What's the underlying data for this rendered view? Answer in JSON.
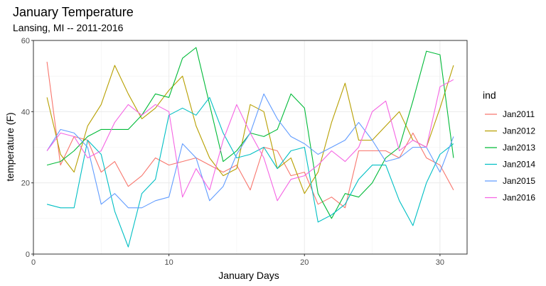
{
  "chart_data": {
    "type": "line",
    "title": "January Temperature",
    "subtitle": "Lansing, MI -- 2011-2016",
    "xlabel": "January Days",
    "ylabel": "temperature (F)",
    "xlim": [
      0,
      32
    ],
    "ylim": [
      0,
      60
    ],
    "xticks": [
      0,
      10,
      20,
      30
    ],
    "yticks": [
      0,
      20,
      40,
      60
    ],
    "grid": true,
    "legend": {
      "title": "ind",
      "position": "right"
    },
    "x": [
      1,
      2,
      3,
      4,
      5,
      6,
      7,
      8,
      9,
      10,
      11,
      12,
      13,
      14,
      15,
      16,
      17,
      18,
      19,
      20,
      21,
      22,
      23,
      24,
      25,
      26,
      27,
      28,
      29,
      30,
      31
    ],
    "series": [
      {
        "name": "Jan2011",
        "color": "#F8766D",
        "values": [
          54,
          25,
          33,
          32,
          23,
          26,
          19,
          22,
          27,
          25,
          26,
          27,
          25,
          23,
          25,
          18,
          30,
          29,
          22,
          23,
          14,
          16,
          13,
          29,
          29,
          29,
          27,
          34,
          27,
          25,
          18
        ]
      },
      {
        "name": "Jan2012",
        "color": "#B79F00",
        "values": [
          44,
          28,
          23,
          36,
          42,
          53,
          45,
          38,
          41,
          46,
          50,
          36,
          27,
          22,
          24,
          42,
          40,
          24,
          27,
          17,
          23,
          37,
          48,
          32,
          32,
          36,
          40,
          32,
          30,
          41,
          53
        ]
      },
      {
        "name": "Jan2013",
        "color": "#00BA38",
        "values": [
          25,
          26,
          29,
          33,
          35,
          35,
          35,
          39,
          45,
          44,
          55,
          58,
          42,
          26,
          29,
          34,
          33,
          35,
          45,
          41,
          17,
          10,
          17,
          16,
          20,
          27,
          30,
          43,
          57,
          56,
          27
        ]
      },
      {
        "name": "Jan2014",
        "color": "#00BFC4",
        "values": [
          14,
          13,
          13,
          32,
          28,
          12,
          2,
          17,
          21,
          39,
          41,
          39,
          44,
          34,
          27,
          28,
          30,
          24,
          29,
          30,
          9,
          11,
          14,
          21,
          25,
          25,
          15,
          8,
          20,
          28,
          31
        ]
      },
      {
        "name": "Jan2015",
        "color": "#619CFF",
        "values": [
          29,
          35,
          34,
          30,
          14,
          17,
          13,
          13,
          15,
          16,
          31,
          27,
          15,
          19,
          28,
          34,
          45,
          38,
          33,
          31,
          28,
          30,
          32,
          37,
          32,
          26,
          27,
          30,
          30,
          23,
          33
        ]
      },
      {
        "name": "Jan2016",
        "color": "#F564E3",
        "values": [
          29,
          34,
          33,
          27,
          29,
          37,
          42,
          39,
          42,
          40,
          16,
          24,
          18,
          32,
          42,
          34,
          27,
          15,
          21,
          22,
          25,
          29,
          26,
          30,
          40,
          43,
          29,
          32,
          30,
          47,
          49
        ]
      }
    ]
  }
}
